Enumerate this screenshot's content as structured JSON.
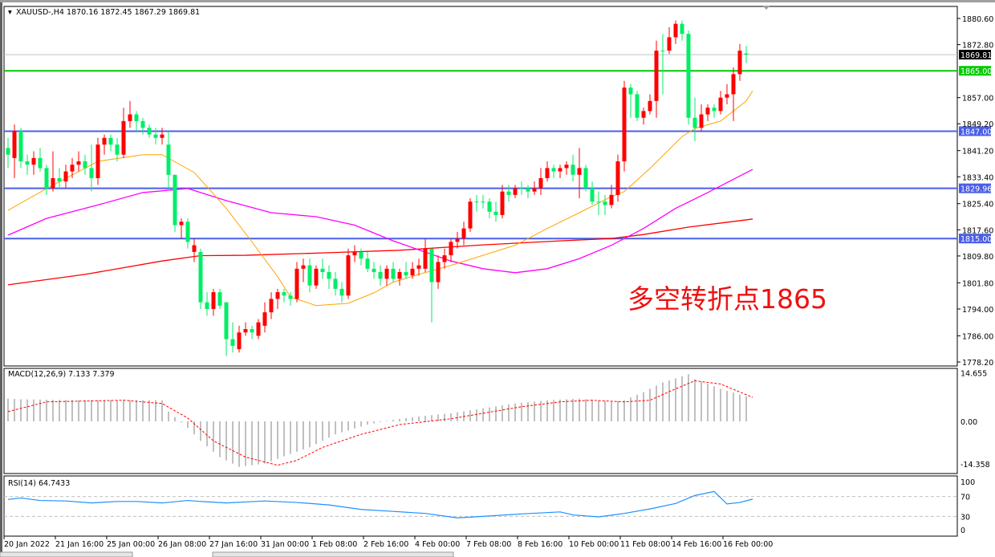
{
  "header": {
    "symbol": "XAUUSD-,H4",
    "ohlc": "1870.16 1872.45 1867.29 1869.81"
  },
  "annotation": "多空转折点1865",
  "colors": {
    "up": "#ff0000",
    "down": "#00ee66",
    "ma_fast": "#ffa500",
    "ma_mid": "#ff00ff",
    "ma_slow": "#ff0000",
    "level_green": "#00cc00",
    "level_blue": "#4a5ee8",
    "rsi": "#1e90ff",
    "macd_hist": "#c0c0c0",
    "macd_signal": "#ff0000"
  },
  "chart_data": [
    {
      "type": "candlestick",
      "title": "XAUUSD-,H4",
      "ylim": [
        1778.2,
        1880.6
      ],
      "y_ticks": [
        "1880.60",
        "1872.80",
        "1857.00",
        "1849.20",
        "1841.20",
        "1833.40",
        "1825.40",
        "1817.60",
        "1809.80",
        "1801.80",
        "1794.00",
        "1786.00",
        "1778.20"
      ],
      "x_ticks": [
        "20 Jan 2022",
        "21 Jan 16:00",
        "25 Jan 00:00",
        "26 Jan 08:00",
        "27 Jan 16:00",
        "31 Jan 00:00",
        "1 Feb 08:00",
        "2 Feb 16:00",
        "4 Feb 00:00",
        "7 Feb 08:00",
        "8 Feb 16:00",
        "10 Feb 00:00",
        "11 Feb 08:00",
        "14 Feb 16:00",
        "16 Feb 00:00"
      ],
      "candles_ohlc": [
        [
          1842,
          1845,
          1836,
          1840
        ],
        [
          1839,
          1849,
          1833,
          1847
        ],
        [
          1847,
          1848,
          1836,
          1838
        ],
        [
          1838,
          1840,
          1834,
          1837
        ],
        [
          1837,
          1841,
          1834,
          1839
        ],
        [
          1839,
          1842,
          1835,
          1836
        ],
        [
          1836,
          1837,
          1828,
          1830
        ],
        [
          1830,
          1841,
          1829,
          1833
        ],
        [
          1833,
          1836,
          1830,
          1832
        ],
        [
          1832,
          1837,
          1830,
          1835
        ],
        [
          1835,
          1839,
          1833,
          1837
        ],
        [
          1837,
          1841,
          1835,
          1838
        ],
        [
          1838,
          1840,
          1834,
          1836
        ],
        [
          1836,
          1843,
          1829,
          1833
        ],
        [
          1833,
          1845,
          1831,
          1843
        ],
        [
          1843,
          1846,
          1840,
          1845
        ],
        [
          1845,
          1846,
          1841,
          1843
        ],
        [
          1843,
          1845,
          1838,
          1840
        ],
        [
          1840,
          1854,
          1839,
          1850
        ],
        [
          1850,
          1856,
          1848,
          1852
        ],
        [
          1852,
          1853,
          1847,
          1850
        ],
        [
          1850,
          1851,
          1846,
          1848
        ],
        [
          1848,
          1849,
          1845,
          1846
        ],
        [
          1846,
          1848,
          1843,
          1845
        ],
        [
          1845,
          1848,
          1843,
          1846
        ],
        [
          1843,
          1847,
          1830,
          1834
        ],
        [
          1834,
          1834,
          1817,
          1819
        ],
        [
          1819,
          1821,
          1815,
          1820
        ],
        [
          1820,
          1821,
          1812,
          1814
        ],
        [
          1811,
          1815,
          1808,
          1813
        ],
        [
          1811,
          1812,
          1794,
          1796
        ],
        [
          1796,
          1799,
          1792,
          1794
        ],
        [
          1794,
          1800,
          1792,
          1799
        ],
        [
          1799,
          1800,
          1794,
          1795
        ],
        [
          1796,
          1796,
          1780,
          1785
        ],
        [
          1785,
          1790,
          1781,
          1783
        ],
        [
          1782,
          1789,
          1781,
          1787
        ],
        [
          1787,
          1790,
          1786,
          1788
        ],
        [
          1788,
          1789,
          1785,
          1787
        ],
        [
          1786,
          1791,
          1785,
          1790
        ],
        [
          1789,
          1796,
          1787,
          1793
        ],
        [
          1793,
          1799,
          1791,
          1797
        ],
        [
          1797,
          1800,
          1794,
          1799
        ],
        [
          1799,
          1800,
          1796,
          1798
        ],
        [
          1798,
          1799,
          1795,
          1797
        ],
        [
          1797,
          1808,
          1796,
          1806
        ],
        [
          1806,
          1809,
          1802,
          1807
        ],
        [
          1807,
          1809,
          1799,
          1801
        ],
        [
          1801,
          1807,
          1800,
          1806
        ],
        [
          1806,
          1809,
          1803,
          1805
        ],
        [
          1805,
          1807,
          1800,
          1803
        ],
        [
          1803,
          1805,
          1798,
          1800
        ],
        [
          1800,
          1802,
          1796,
          1798
        ],
        [
          1798,
          1812,
          1797,
          1810
        ],
        [
          1810,
          1813,
          1808,
          1811
        ],
        [
          1811,
          1812,
          1807,
          1809
        ],
        [
          1809,
          1811,
          1805,
          1806
        ],
        [
          1806,
          1808,
          1803,
          1805
        ],
        [
          1805,
          1807,
          1801,
          1803
        ],
        [
          1803,
          1807,
          1801,
          1806
        ],
        [
          1806,
          1808,
          1802,
          1803
        ],
        [
          1803,
          1806,
          1801,
          1805
        ],
        [
          1805,
          1808,
          1803,
          1804
        ],
        [
          1804,
          1808,
          1803,
          1806
        ],
        [
          1806,
          1809,
          1804,
          1807
        ],
        [
          1806,
          1815,
          1805,
          1812
        ],
        [
          1812,
          1812,
          1790,
          1802
        ],
        [
          1802,
          1810,
          1800,
          1808
        ],
        [
          1808,
          1812,
          1806,
          1810
        ],
        [
          1810,
          1815,
          1808,
          1814
        ],
        [
          1814,
          1817,
          1812,
          1815
        ],
        [
          1815,
          1820,
          1813,
          1818
        ],
        [
          1818,
          1827,
          1817,
          1826
        ],
        [
          1826,
          1828,
          1823,
          1826
        ],
        [
          1826,
          1828,
          1824,
          1826
        ],
        [
          1826,
          1827,
          1821,
          1823
        ],
        [
          1823,
          1826,
          1820,
          1822
        ],
        [
          1822,
          1831,
          1821,
          1829
        ],
        [
          1829,
          1831,
          1826,
          1828
        ],
        [
          1828,
          1831,
          1827,
          1830
        ],
        [
          1830,
          1832,
          1828,
          1830
        ],
        [
          1830,
          1831,
          1827,
          1829
        ],
        [
          1829,
          1832,
          1828,
          1830
        ],
        [
          1830,
          1836,
          1828,
          1833
        ],
        [
          1833,
          1838,
          1832,
          1836
        ],
        [
          1836,
          1837,
          1833,
          1835
        ],
        [
          1835,
          1837,
          1833,
          1836
        ],
        [
          1836,
          1838,
          1834,
          1837
        ],
        [
          1837,
          1840,
          1832,
          1834
        ],
        [
          1834,
          1842,
          1827,
          1836
        ],
        [
          1836,
          1837,
          1829,
          1830
        ],
        [
          1830,
          1832,
          1825,
          1826
        ],
        [
          1826,
          1829,
          1822,
          1826
        ],
        [
          1826,
          1828,
          1822,
          1825
        ],
        [
          1825,
          1831,
          1824,
          1828
        ],
        [
          1828,
          1840,
          1826,
          1838
        ],
        [
          1838,
          1862,
          1835,
          1860
        ],
        [
          1860,
          1861,
          1851,
          1858
        ],
        [
          1858,
          1859,
          1850,
          1851
        ],
        [
          1851,
          1854,
          1849,
          1853
        ],
        [
          1853,
          1858,
          1852,
          1856
        ],
        [
          1856,
          1874,
          1851,
          1871
        ],
        [
          1871,
          1876,
          1858,
          1871
        ],
        [
          1871,
          1878,
          1870,
          1875
        ],
        [
          1875,
          1880,
          1873,
          1879
        ],
        [
          1879,
          1880,
          1874,
          1876
        ],
        [
          1876,
          1877,
          1849,
          1851
        ],
        [
          1851,
          1857,
          1844,
          1848
        ],
        [
          1848,
          1855,
          1847,
          1852
        ],
        [
          1852,
          1855,
          1850,
          1854
        ],
        [
          1854,
          1855,
          1851,
          1853
        ],
        [
          1853,
          1859,
          1852,
          1857
        ],
        [
          1857,
          1861,
          1855,
          1858
        ],
        [
          1858,
          1866,
          1850,
          1864
        ],
        [
          1864,
          1873,
          1862,
          1871
        ],
        [
          1870.16,
          1872.45,
          1867.29,
          1869.81
        ]
      ],
      "ma_fast_points": [
        [
          0,
          1823.4
        ],
        [
          6,
          1829.9
        ],
        [
          14,
          1838
        ],
        [
          21,
          1840
        ],
        [
          24,
          1840
        ],
        [
          29,
          1834.7
        ],
        [
          34,
          1824
        ],
        [
          38,
          1814
        ],
        [
          42,
          1803.6
        ],
        [
          44,
          1797.6
        ],
        [
          48,
          1795
        ],
        [
          53,
          1795.7
        ],
        [
          57,
          1798.8
        ],
        [
          60,
          1802
        ],
        [
          64,
          1804.3
        ],
        [
          69,
          1807
        ],
        [
          74,
          1810
        ],
        [
          79,
          1813
        ],
        [
          84,
          1818
        ],
        [
          89,
          1822.7
        ],
        [
          94,
          1827.5
        ],
        [
          96,
          1829
        ],
        [
          100,
          1835.9
        ],
        [
          105,
          1845.4
        ],
        [
          107,
          1847.8
        ],
        [
          111,
          1850
        ],
        [
          115,
          1856
        ],
        [
          116,
          1859
        ]
      ],
      "ma_mid_points": [
        [
          0,
          1816
        ],
        [
          6,
          1821
        ],
        [
          14,
          1825
        ],
        [
          21,
          1828.7
        ],
        [
          28,
          1829.9
        ],
        [
          34,
          1826.3
        ],
        [
          41,
          1822.7
        ],
        [
          48,
          1821.5
        ],
        [
          54,
          1819
        ],
        [
          60,
          1814.3
        ],
        [
          69,
          1808.3
        ],
        [
          74,
          1806
        ],
        [
          79,
          1804.8
        ],
        [
          84,
          1806
        ],
        [
          89,
          1809
        ],
        [
          94,
          1813
        ],
        [
          99,
          1818
        ],
        [
          104,
          1824
        ],
        [
          109,
          1828.7
        ],
        [
          116,
          1835.6
        ]
      ],
      "ma_slow_points": [
        [
          0,
          1801.2
        ],
        [
          12,
          1804.3
        ],
        [
          24,
          1808.3
        ],
        [
          30,
          1809.9
        ],
        [
          37,
          1810
        ],
        [
          49,
          1810.7
        ],
        [
          61,
          1811.5
        ],
        [
          74,
          1813.1
        ],
        [
          86,
          1814.3
        ],
        [
          94,
          1815
        ],
        [
          99,
          1816.2
        ],
        [
          106,
          1818.4
        ],
        [
          116,
          1820.8
        ]
      ],
      "levels": [
        {
          "label": "1869.81",
          "value": 1869.81,
          "style": "current"
        },
        {
          "label": "1865.00",
          "value": 1865.0,
          "style": "green"
        },
        {
          "label": "1847.00",
          "value": 1847.0,
          "style": "blue"
        },
        {
          "label": "1829.96",
          "value": 1829.96,
          "style": "blue"
        },
        {
          "label": "1815.00",
          "value": 1815.0,
          "style": "blue"
        }
      ]
    },
    {
      "type": "bar",
      "title": "MACD(12,26,9) 7.133 7.379",
      "ylim": [
        -14.358,
        14.655
      ],
      "y_ticks": [
        "14.655",
        "0.00",
        "-14.358"
      ],
      "macd_points": [
        [
          0,
          7
        ],
        [
          2,
          6.8
        ],
        [
          12,
          6.5
        ],
        [
          24,
          6.5
        ],
        [
          25,
          3
        ],
        [
          28,
          -2
        ],
        [
          30,
          -6
        ],
        [
          33,
          -11
        ],
        [
          36,
          -14
        ],
        [
          40,
          -13
        ],
        [
          44,
          -10
        ],
        [
          47,
          -8
        ],
        [
          51,
          -4
        ],
        [
          56,
          -1
        ],
        [
          60,
          0.5
        ],
        [
          64,
          1.5
        ],
        [
          69,
          2.5
        ],
        [
          74,
          4
        ],
        [
          79,
          5.5
        ],
        [
          84,
          6.5
        ],
        [
          89,
          7
        ],
        [
          94,
          6
        ],
        [
          96,
          6.5
        ],
        [
          99,
          9
        ],
        [
          102,
          12
        ],
        [
          106,
          14.5
        ],
        [
          107,
          13
        ],
        [
          111,
          10
        ],
        [
          116,
          7.133
        ]
      ],
      "signal_points": [
        [
          0,
          3
        ],
        [
          6,
          6
        ],
        [
          18,
          6.5
        ],
        [
          24,
          5.5
        ],
        [
          28,
          1
        ],
        [
          32,
          -6
        ],
        [
          37,
          -11
        ],
        [
          42,
          -13.5
        ],
        [
          45,
          -12
        ],
        [
          49,
          -8
        ],
        [
          55,
          -4
        ],
        [
          61,
          -1
        ],
        [
          69,
          0.8
        ],
        [
          74,
          2.5
        ],
        [
          80,
          4.5
        ],
        [
          86,
          6
        ],
        [
          91,
          6.5
        ],
        [
          96,
          6
        ],
        [
          100,
          6.5
        ],
        [
          104,
          10
        ],
        [
          107,
          12.5
        ],
        [
          111,
          11.5
        ],
        [
          116,
          7.379
        ]
      ]
    },
    {
      "type": "line",
      "title": "RSI(14) 64.7433",
      "ylim": [
        0,
        100
      ],
      "y_ticks": [
        "100",
        "70",
        "30",
        "0"
      ],
      "levels": [
        70,
        30
      ],
      "rsi_points": [
        [
          0,
          64
        ],
        [
          2,
          67
        ],
        [
          5,
          62
        ],
        [
          9,
          61
        ],
        [
          13,
          57
        ],
        [
          17,
          60
        ],
        [
          20,
          60
        ],
        [
          24,
          57
        ],
        [
          28,
          62
        ],
        [
          30,
          60
        ],
        [
          34,
          57
        ],
        [
          40,
          61
        ],
        [
          45,
          58
        ],
        [
          50,
          53
        ],
        [
          55,
          44
        ],
        [
          60,
          40
        ],
        [
          65,
          36
        ],
        [
          70,
          27
        ],
        [
          74,
          30
        ],
        [
          80,
          35
        ],
        [
          86,
          39
        ],
        [
          88,
          33
        ],
        [
          92,
          29
        ],
        [
          96,
          36
        ],
        [
          100,
          45
        ],
        [
          104,
          56
        ],
        [
          107,
          72
        ],
        [
          110,
          80
        ],
        [
          112,
          55
        ],
        [
          114,
          58
        ],
        [
          116,
          64.74
        ]
      ]
    }
  ]
}
